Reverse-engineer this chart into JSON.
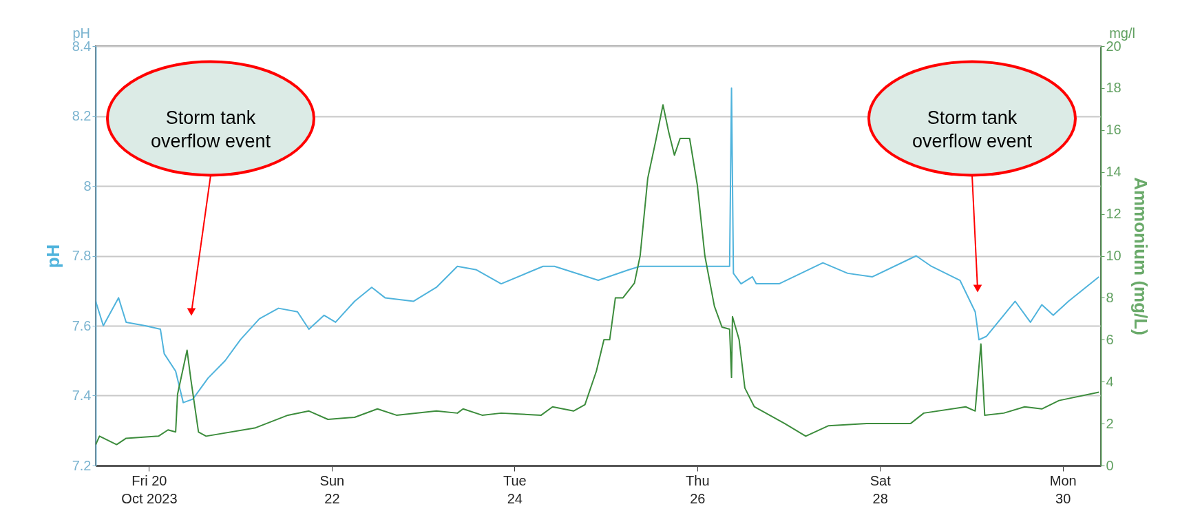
{
  "chart_data": {
    "type": "line",
    "ylabel": "pH",
    "y2label": "Ammonium (mg/L)",
    "xlim": [
      "2023-10-19T10:00",
      "2023-10-30T10:00"
    ],
    "xticks": [
      {
        "value": "2023-10-20T00:00",
        "label": "Fri 20\nOct 2023"
      },
      {
        "value": "2023-10-22T00:00",
        "label": "Sun\n22"
      },
      {
        "value": "2023-10-24T00:00",
        "label": "Tue\n24"
      },
      {
        "value": "2023-10-26T00:00",
        "label": "Thu\n26"
      },
      {
        "value": "2023-10-28T00:00",
        "label": "Sat\n28"
      },
      {
        "value": "2023-10-30T00:00",
        "label": "Mon\n30"
      }
    ],
    "ylim": [
      7.2,
      8.4
    ],
    "yticks": [
      7.2,
      7.4,
      7.6,
      7.8,
      {
        "value": 8.0,
        "label": "8"
      },
      8.2,
      8.4
    ],
    "y2lim": [
      0,
      20
    ],
    "y2ticks": [
      0,
      2,
      4,
      6,
      8,
      10,
      12,
      14,
      16,
      18,
      20
    ],
    "grid": "y",
    "marker": "none",
    "line_style": "solid",
    "series": [
      {
        "color": "#4fb3dc",
        "x": [
          "2023-10-19T10:00",
          "2023-10-19T12:00",
          "2023-10-19T14:00",
          "2023-10-19T16:00",
          "2023-10-19T18:00",
          "2023-10-19T23:00",
          "2023-10-20T03:00",
          "2023-10-20T04:00",
          "2023-10-20T07:00",
          "2023-10-20T09:00",
          "2023-10-20T11:30",
          "2023-10-20T15:30",
          "2023-10-20T20:00",
          "2023-10-21T00:00",
          "2023-10-21T05:00",
          "2023-10-21T10:00",
          "2023-10-21T15:00",
          "2023-10-21T18:00",
          "2023-10-21T22:00",
          "2023-10-22T01:00",
          "2023-10-22T06:00",
          "2023-10-22T10:30",
          "2023-10-22T14:00",
          "2023-10-22T21:30",
          "2023-10-23T03:30",
          "2023-10-23T09:00",
          "2023-10-23T14:00",
          "2023-10-23T20:30",
          "2023-10-24T07:30",
          "2023-10-24T10:30",
          "2023-10-24T22:00",
          "2023-10-25T06:00",
          "2023-10-25T09:00",
          "2023-10-25T23:30",
          "2023-10-26T08:30",
          "2023-10-26T09:00",
          "2023-10-26T09:30",
          "2023-10-26T11:30",
          "2023-10-26T14:30",
          "2023-10-26T15:30",
          "2023-10-26T21:30",
          "2023-10-27T09:00",
          "2023-10-27T15:30",
          "2023-10-27T22:00",
          "2023-10-28T09:30",
          "2023-10-28T13:30",
          "2023-10-28T21:00",
          "2023-10-29T01:00",
          "2023-10-29T02:00",
          "2023-10-29T04:00",
          "2023-10-29T11:30",
          "2023-10-29T15:30",
          "2023-10-29T18:30",
          "2023-10-29T21:30",
          "2023-10-30T01:30",
          "2023-10-30T09:30"
        ],
        "values": [
          7.67,
          7.6,
          7.64,
          7.68,
          7.61,
          7.6,
          7.59,
          7.52,
          7.47,
          7.38,
          7.39,
          7.45,
          7.5,
          7.56,
          7.62,
          7.65,
          7.64,
          7.59,
          7.63,
          7.61,
          7.67,
          7.71,
          7.68,
          7.67,
          7.71,
          7.77,
          7.76,
          7.72,
          7.77,
          7.77,
          7.73,
          7.76,
          7.77,
          7.77,
          7.77,
          8.28,
          7.75,
          7.72,
          7.74,
          7.72,
          7.72,
          7.78,
          7.75,
          7.74,
          7.8,
          7.77,
          7.73,
          7.64,
          7.56,
          7.57,
          7.67,
          7.61,
          7.66,
          7.63,
          7.67,
          7.74
        ]
      },
      {
        "color": "#3c8c3c",
        "axis": "y2",
        "x": [
          "2023-10-19T10:00",
          "2023-10-19T11:00",
          "2023-10-19T15:30",
          "2023-10-19T18:00",
          "2023-10-20T02:30",
          "2023-10-20T05:00",
          "2023-10-20T07:00",
          "2023-10-20T07:30",
          "2023-10-20T10:00",
          "2023-10-20T11:00",
          "2023-10-20T13:00",
          "2023-10-20T15:00",
          "2023-10-21T04:00",
          "2023-10-21T12:30",
          "2023-10-21T18:00",
          "2023-10-21T23:00",
          "2023-10-22T06:00",
          "2023-10-22T12:00",
          "2023-10-22T17:00",
          "2023-10-23T03:30",
          "2023-10-23T09:00",
          "2023-10-23T10:30",
          "2023-10-23T15:30",
          "2023-10-23T20:30",
          "2023-10-24T07:00",
          "2023-10-24T10:00",
          "2023-10-24T15:30",
          "2023-10-24T18:30",
          "2023-10-24T21:30",
          "2023-10-24T23:30",
          "2023-10-25T01:00",
          "2023-10-25T02:30",
          "2023-10-25T04:30",
          "2023-10-25T07:30",
          "2023-10-25T09:00",
          "2023-10-25T11:00",
          "2023-10-25T13:00",
          "2023-10-25T15:00",
          "2023-10-25T16:30",
          "2023-10-25T18:00",
          "2023-10-25T19:30",
          "2023-10-25T22:00",
          "2023-10-26T00:00",
          "2023-10-26T02:00",
          "2023-10-26T04:30",
          "2023-10-26T06:30",
          "2023-10-26T08:30",
          "2023-10-26T09:00",
          "2023-10-26T09:15",
          "2023-10-26T11:00",
          "2023-10-26T12:30",
          "2023-10-26T15:00",
          "2023-10-26T23:00",
          "2023-10-27T04:30",
          "2023-10-27T10:30",
          "2023-10-27T20:30",
          "2023-10-28T08:00",
          "2023-10-28T11:30",
          "2023-10-28T22:30",
          "2023-10-29T01:00",
          "2023-10-29T02:30",
          "2023-10-29T03:30",
          "2023-10-29T08:30",
          "2023-10-29T14:00",
          "2023-10-29T18:30",
          "2023-10-29T23:00",
          "2023-10-30T09:30"
        ],
        "values": [
          1.0,
          1.4,
          1.0,
          1.3,
          1.4,
          1.7,
          1.6,
          3.4,
          5.5,
          4.1,
          1.6,
          1.4,
          1.8,
          2.4,
          2.6,
          2.2,
          2.3,
          2.7,
          2.4,
          2.6,
          2.5,
          2.7,
          2.4,
          2.5,
          2.4,
          2.8,
          2.6,
          2.9,
          4.5,
          6.0,
          6.0,
          8.0,
          8.0,
          8.7,
          10.0,
          13.7,
          15.4,
          17.2,
          15.9,
          14.8,
          15.6,
          15.6,
          13.4,
          10.0,
          7.6,
          6.6,
          6.5,
          4.2,
          7.1,
          6.0,
          3.7,
          2.8,
          2.0,
          1.4,
          1.9,
          2.0,
          2.0,
          2.5,
          2.8,
          2.6,
          5.8,
          2.4,
          2.5,
          2.8,
          2.7,
          3.1,
          3.5
        ]
      }
    ],
    "annotations": [
      "pH",
      "mg/l",
      "Storm tank overflow event",
      "Storm tank overflow event"
    ]
  }
}
